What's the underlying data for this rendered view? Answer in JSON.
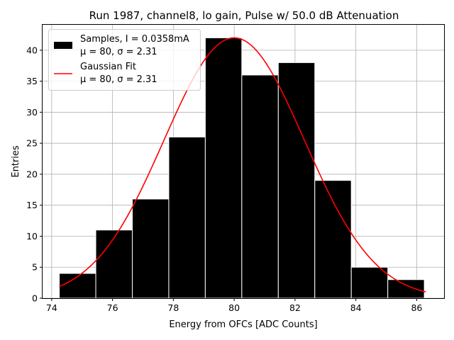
{
  "chart_data": {
    "type": "bar",
    "title": "Run 1987, channel8, lo gain, Pulse w/ 50.0 dB Attenuation",
    "xlabel": "Energy from OFCs [ADC Counts]",
    "ylabel": "Entries",
    "xlim": [
      73.7,
      86.9
    ],
    "ylim": [
      0,
      44.1
    ],
    "grid": true,
    "xticks": [
      74,
      76,
      78,
      80,
      82,
      84,
      86
    ],
    "yticks": [
      0,
      5,
      10,
      15,
      20,
      25,
      30,
      35,
      40
    ],
    "bins": [
      {
        "start": 74.25,
        "end": 75.45,
        "count": 4
      },
      {
        "start": 75.45,
        "end": 76.65,
        "count": 11
      },
      {
        "start": 76.65,
        "end": 77.85,
        "count": 16
      },
      {
        "start": 77.85,
        "end": 79.05,
        "count": 26
      },
      {
        "start": 79.05,
        "end": 80.25,
        "count": 42
      },
      {
        "start": 80.25,
        "end": 81.45,
        "count": 36
      },
      {
        "start": 81.45,
        "end": 82.65,
        "count": 38
      },
      {
        "start": 82.65,
        "end": 83.85,
        "count": 19
      },
      {
        "start": 83.85,
        "end": 85.05,
        "count": 5
      },
      {
        "start": 85.05,
        "end": 86.25,
        "count": 3
      }
    ],
    "fit": {
      "mu": 80.0,
      "sigma": 2.31,
      "amplitude": 42.0,
      "x_range": [
        74.25,
        86.3
      ],
      "color": "#ff0000"
    },
    "bar_color": "#000000",
    "bar_edge_color": "#ffffff",
    "legend": {
      "placement": "top-left",
      "entries": [
        {
          "label_line1": "Samples, I = 0.0358mA",
          "label_line2": "μ = 80, σ = 2.31",
          "kind": "bar"
        },
        {
          "label_line1": "Gaussian Fit",
          "label_line2": "μ = 80, σ = 2.31",
          "kind": "line"
        }
      ]
    }
  }
}
